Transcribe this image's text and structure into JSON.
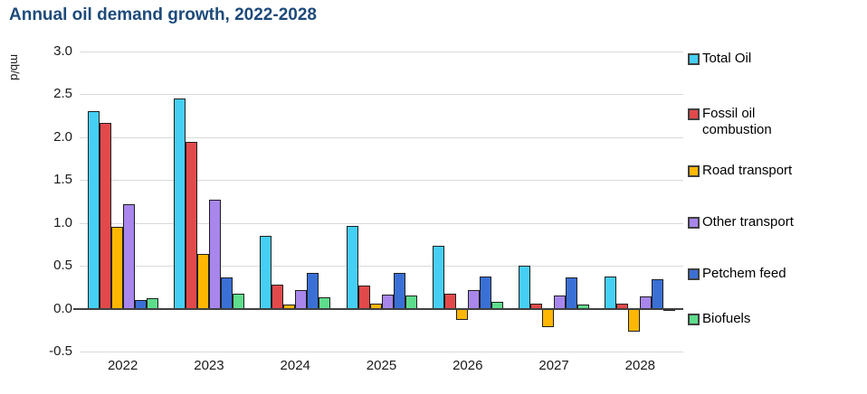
{
  "title": "Annual oil demand growth, 2022-2028",
  "chart_data": {
    "type": "bar",
    "title": "Annual oil demand growth, 2022-2028",
    "xlabel": "",
    "ylabel": "mb/d",
    "ylim": [
      -0.5,
      3.0
    ],
    "ytick_step": 0.5,
    "grid": true,
    "legend_position": "right",
    "categories": [
      "2022",
      "2023",
      "2024",
      "2025",
      "2026",
      "2027",
      "2028"
    ],
    "series": [
      {
        "name": "Total Oil",
        "color": "#45CFF5",
        "values": [
          2.3,
          2.45,
          0.85,
          0.97,
          0.73,
          0.5,
          0.38
        ]
      },
      {
        "name": "Fossil oil combustion",
        "color": "#E2494B",
        "values": [
          2.17,
          1.95,
          0.28,
          0.27,
          0.17,
          0.06,
          0.06
        ]
      },
      {
        "name": "Road transport",
        "color": "#FFB703",
        "values": [
          0.95,
          0.64,
          0.05,
          0.06,
          -0.13,
          -0.22,
          -0.27
        ]
      },
      {
        "name": "Other transport",
        "color": "#A886EC",
        "values": [
          1.22,
          1.27,
          0.22,
          0.16,
          0.22,
          0.15,
          0.14
        ]
      },
      {
        "name": "Petchem feed",
        "color": "#3A70D6",
        "values": [
          0.1,
          0.36,
          0.42,
          0.42,
          0.38,
          0.36,
          0.34
        ]
      },
      {
        "name": "Biofuels",
        "color": "#5EDD8C",
        "values": [
          0.12,
          0.17,
          0.13,
          0.15,
          0.08,
          0.05,
          -0.03
        ]
      }
    ]
  },
  "colors": {
    "title_text": "#1E4A7A",
    "gridline": "#D9D9D9",
    "axis_line": "#404040",
    "tick_text": "#1A1A1A"
  }
}
